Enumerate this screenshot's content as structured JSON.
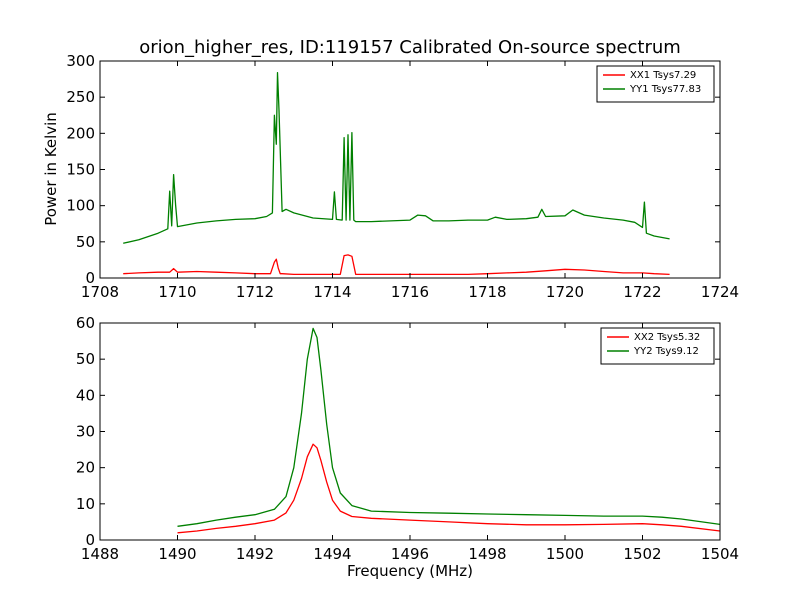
{
  "chart_data": [
    {
      "type": "line",
      "title": "orion_higher_res, ID:119157 Calibrated On-source spectrum",
      "xlabel": "",
      "ylabel": "Power in Kelvin",
      "xlim": [
        1708,
        1724
      ],
      "ylim": [
        0,
        300
      ],
      "xticks": [
        1708,
        1710,
        1712,
        1714,
        1716,
        1718,
        1720,
        1722,
        1724
      ],
      "yticks": [
        0,
        50,
        100,
        150,
        200,
        250,
        300
      ],
      "grid": false,
      "legend_position": "top-right",
      "series": [
        {
          "name": "XX1 Tsys7.29",
          "color": "#ff0000",
          "x": [
            1708.6,
            1709.0,
            1709.5,
            1709.8,
            1709.9,
            1710.0,
            1710.5,
            1711.0,
            1711.5,
            1712.0,
            1712.4,
            1712.5,
            1712.55,
            1712.6,
            1712.65,
            1712.7,
            1713.0,
            1713.5,
            1714.0,
            1714.2,
            1714.3,
            1714.4,
            1714.5,
            1714.6,
            1714.7,
            1715.0,
            1715.5,
            1716.0,
            1716.5,
            1717.0,
            1717.5,
            1718.0,
            1718.5,
            1719.0,
            1719.5,
            1720.0,
            1720.5,
            1721.0,
            1721.5,
            1722.0,
            1722.3,
            1722.7
          ],
          "y": [
            6,
            7,
            8,
            8,
            13,
            8,
            9,
            8,
            7,
            6,
            6,
            22,
            26,
            14,
            6,
            6,
            5,
            5,
            5,
            5,
            31,
            32,
            30,
            5,
            5,
            5,
            5,
            5,
            5,
            5,
            5,
            6,
            7,
            8,
            10,
            12,
            11,
            9,
            7,
            7,
            6,
            5
          ]
        },
        {
          "name": "YY1 Tsys77.83",
          "color": "#008000",
          "x": [
            1708.6,
            1709.0,
            1709.5,
            1709.75,
            1709.8,
            1709.85,
            1709.9,
            1709.95,
            1710.0,
            1710.5,
            1711.0,
            1711.5,
            1712.0,
            1712.3,
            1712.45,
            1712.5,
            1712.55,
            1712.58,
            1712.62,
            1712.7,
            1712.8,
            1713.0,
            1713.5,
            1714.0,
            1714.05,
            1714.1,
            1714.25,
            1714.3,
            1714.35,
            1714.4,
            1714.45,
            1714.5,
            1714.55,
            1714.6,
            1715.0,
            1715.5,
            1716.0,
            1716.2,
            1716.4,
            1716.6,
            1717.0,
            1717.5,
            1718.0,
            1718.2,
            1718.5,
            1719.0,
            1719.3,
            1719.4,
            1719.5,
            1720.0,
            1720.2,
            1720.5,
            1721.0,
            1721.5,
            1721.8,
            1722.0,
            1722.05,
            1722.1,
            1722.3,
            1722.7
          ],
          "y": [
            48,
            53,
            62,
            68,
            120,
            72,
            143,
            101,
            71,
            76,
            79,
            81,
            82,
            85,
            90,
            225,
            185,
            284,
            232,
            92,
            95,
            90,
            83,
            81,
            119,
            81,
            80,
            194,
            80,
            198,
            80,
            201,
            80,
            78,
            78,
            79,
            80,
            87,
            86,
            79,
            79,
            80,
            80,
            84,
            81,
            82,
            84,
            95,
            85,
            86,
            94,
            87,
            83,
            80,
            77,
            70,
            105,
            62,
            58,
            54
          ]
        }
      ]
    },
    {
      "type": "line",
      "title": "",
      "xlabel": "Frequency (MHz)",
      "ylabel": "",
      "xlim": [
        1488,
        1504
      ],
      "ylim": [
        0,
        60
      ],
      "xticks": [
        1488,
        1490,
        1492,
        1494,
        1496,
        1498,
        1500,
        1502,
        1504
      ],
      "yticks": [
        0,
        10,
        20,
        30,
        40,
        50,
        60
      ],
      "grid": false,
      "legend_position": "top-right",
      "series": [
        {
          "name": "XX2 Tsys5.32",
          "color": "#ff0000",
          "x": [
            1490,
            1490.5,
            1491,
            1491.5,
            1492,
            1492.5,
            1492.8,
            1493.0,
            1493.2,
            1493.35,
            1493.5,
            1493.6,
            1493.7,
            1493.85,
            1494.0,
            1494.2,
            1494.5,
            1495,
            1496,
            1497,
            1498,
            1499,
            1500,
            1501,
            1502,
            1502.5,
            1503,
            1504
          ],
          "y": [
            2,
            2.5,
            3.2,
            3.8,
            4.5,
            5.5,
            7.5,
            11,
            17,
            23,
            26.5,
            25.5,
            22,
            16,
            11,
            8,
            6.5,
            6,
            5.5,
            5,
            4.5,
            4.2,
            4.2,
            4.3,
            4.5,
            4.2,
            3.8,
            2.5
          ]
        },
        {
          "name": "YY2 Tsys9.12",
          "color": "#008000",
          "x": [
            1490,
            1490.5,
            1491,
            1491.5,
            1492,
            1492.5,
            1492.8,
            1493.0,
            1493.2,
            1493.35,
            1493.5,
            1493.6,
            1493.7,
            1493.85,
            1494.0,
            1494.2,
            1494.5,
            1495,
            1496,
            1497,
            1498,
            1499,
            1500,
            1501,
            1502,
            1502.5,
            1503,
            1504
          ],
          "y": [
            3.8,
            4.5,
            5.5,
            6.3,
            7,
            8.5,
            12,
            20,
            35,
            50,
            58.5,
            56,
            47,
            32,
            20,
            13,
            9.5,
            8,
            7.6,
            7.4,
            7.2,
            7,
            6.8,
            6.6,
            6.6,
            6.3,
            5.8,
            4.3
          ]
        }
      ]
    }
  ]
}
